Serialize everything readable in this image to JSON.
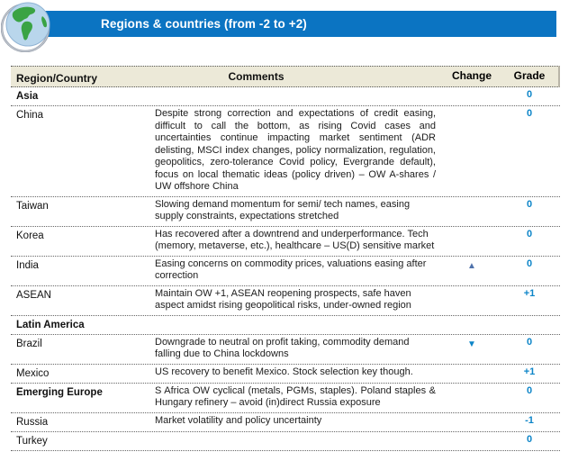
{
  "header": {
    "title": "Regions & countries (from -2 to +2)",
    "icon": "globe-icon",
    "bar_color": "#0b74c2",
    "title_color": "#ffffff"
  },
  "table": {
    "columns": [
      "Region/Country",
      "Comments",
      "Change",
      "Grade"
    ],
    "change_symbols": {
      "up": "▲",
      "down": "▼"
    },
    "colors": {
      "header_bg": "#ece9d8",
      "grade_text": "#0d85c8",
      "change_up": "#4f72ab",
      "change_down": "#0d85c8",
      "row_divider": "dotted-black"
    },
    "rows": [
      {
        "region": "Asia",
        "bold": true,
        "comment": "",
        "justify": false,
        "change": "",
        "grade": "0"
      },
      {
        "region": "China",
        "bold": false,
        "comment": "Despite strong correction and expectations of credit easing, difficult to call the bottom, as rising Covid cases and uncertainties continue impacting market sentiment (ADR delisting, MSCI index changes, policy normalization, regulation, geopolitics, zero-tolerance Covid policy, Evergrande default), focus on local thematic ideas (policy driven) – OW A-shares / UW offshore China",
        "justify": true,
        "change": "",
        "grade": "0"
      },
      {
        "region": "Taiwan",
        "bold": false,
        "comment": "Slowing demand momentum for semi/ tech names, easing supply constraints, expectations stretched",
        "justify": false,
        "change": "",
        "grade": "0"
      },
      {
        "region": "Korea",
        "bold": false,
        "comment": "Has recovered after a downtrend and underperformance. Tech (memory, metaverse, etc.), healthcare – US(D) sensitive market",
        "justify": false,
        "change": "",
        "grade": "0"
      },
      {
        "region": "India",
        "bold": false,
        "comment": "Easing concerns on commodity prices, valuations easing after correction",
        "justify": false,
        "change": "up",
        "grade": "0"
      },
      {
        "region": "ASEAN",
        "bold": false,
        "comment": "Maintain OW +1, ASEAN reopening prospects, safe haven aspect amidst rising geopolitical risks, under-owned region",
        "justify": false,
        "change": "",
        "grade": "+1"
      },
      {
        "region": "Latin America",
        "bold": true,
        "comment": "",
        "justify": false,
        "change": "",
        "grade": ""
      },
      {
        "region": "Brazil",
        "bold": false,
        "comment": "Downgrade to neutral on profit taking, commodity demand falling due to China lockdowns",
        "justify": false,
        "change": "down",
        "grade": "0"
      },
      {
        "region": "Mexico",
        "bold": false,
        "comment": "US recovery to benefit Mexico. Stock selection key though.",
        "justify": false,
        "change": "",
        "grade": "+1"
      },
      {
        "region": "Emerging Europe",
        "bold": true,
        "comment": "S Africa OW cyclical (metals, PGMs, staples). Poland staples & Hungary refinery – avoid (in)direct Russia exposure",
        "justify": true,
        "change": "",
        "grade": "0"
      },
      {
        "region": "Russia",
        "bold": false,
        "comment": "Market volatility and policy uncertainty",
        "justify": false,
        "change": "",
        "grade": "-1"
      },
      {
        "region": "Turkey",
        "bold": false,
        "comment": "",
        "justify": false,
        "change": "",
        "grade": "0"
      }
    ]
  }
}
